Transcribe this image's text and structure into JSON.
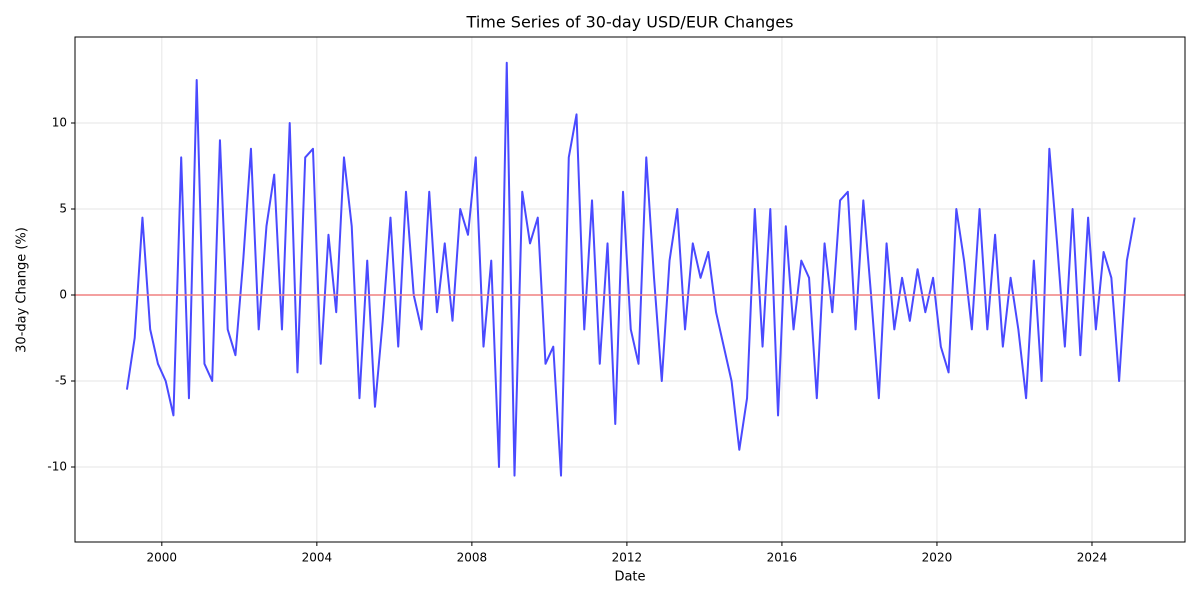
{
  "chart_data": {
    "type": "line",
    "title": "Time Series of 30-day USD/EUR Changes",
    "x_label": "Date",
    "y_label": "30-day Change (%)",
    "x": [
      1999.1,
      1999.3,
      1999.5,
      1999.7,
      1999.9,
      2000.1,
      2000.3,
      2000.5,
      2000.7,
      2000.9,
      2001.1,
      2001.3,
      2001.5,
      2001.7,
      2001.9,
      2002.1,
      2002.3,
      2002.5,
      2002.7,
      2002.9,
      2003.1,
      2003.3,
      2003.5,
      2003.7,
      2003.9,
      2004.1,
      2004.3,
      2004.5,
      2004.7,
      2004.9,
      2005.1,
      2005.3,
      2005.5,
      2005.7,
      2005.9,
      2006.1,
      2006.3,
      2006.5,
      2006.7,
      2006.9,
      2007.1,
      2007.3,
      2007.5,
      2007.7,
      2007.9,
      2008.1,
      2008.3,
      2008.5,
      2008.7,
      2008.9,
      2009.1,
      2009.3,
      2009.5,
      2009.7,
      2009.9,
      2010.1,
      2010.3,
      2010.5,
      2010.7,
      2010.9,
      2011.1,
      2011.3,
      2011.5,
      2011.7,
      2011.9,
      2012.1,
      2012.3,
      2012.5,
      2012.7,
      2012.9,
      2013.1,
      2013.3,
      2013.5,
      2013.7,
      2013.9,
      2014.1,
      2014.3,
      2014.5,
      2014.7,
      2014.9,
      2015.1,
      2015.3,
      2015.5,
      2015.7,
      2015.9,
      2016.1,
      2016.3,
      2016.5,
      2016.7,
      2016.9,
      2017.1,
      2017.3,
      2017.5,
      2017.7,
      2017.9,
      2018.1,
      2018.3,
      2018.5,
      2018.7,
      2018.9,
      2019.1,
      2019.3,
      2019.5,
      2019.7,
      2019.9,
      2020.1,
      2020.3,
      2020.5,
      2020.7,
      2020.9,
      2021.1,
      2021.3,
      2021.5,
      2021.7,
      2021.9,
      2022.1,
      2022.3,
      2022.5,
      2022.7,
      2022.9,
      2023.1,
      2023.3,
      2023.5,
      2023.7,
      2023.9,
      2024.1,
      2024.3,
      2024.5,
      2024.7,
      2024.9,
      2025.1
    ],
    "series": [
      {
        "name": "30-day Change",
        "color": "#4a4aff",
        "values": [
          -5.5,
          -2.5,
          4.5,
          -2,
          -4,
          -5,
          -7,
          8,
          -6,
          12.5,
          -4,
          -5,
          9,
          -2,
          -3.5,
          2,
          8.5,
          -2,
          4,
          7,
          -2,
          10,
          -4.5,
          8,
          8.5,
          -4,
          3.5,
          -1,
          8,
          4,
          -6,
          2,
          -6.5,
          -1.5,
          4.5,
          -3,
          6,
          0,
          -2,
          6,
          -1,
          3,
          -1.5,
          5,
          3.5,
          8,
          -3,
          2,
          -10,
          13.5,
          -10.5,
          6,
          3,
          4.5,
          -4,
          -3,
          -10.5,
          8,
          10.5,
          -2,
          5.5,
          -4,
          3,
          -7.5,
          6,
          -2,
          -4,
          8,
          1,
          -5,
          2,
          5,
          -2,
          3,
          1,
          2.5,
          -1,
          -3,
          -5,
          -9,
          -6,
          5,
          -3,
          5,
          -7,
          4,
          -2,
          2,
          1,
          -6,
          3,
          -1,
          5.5,
          6,
          -2,
          5.5,
          0,
          -6,
          3,
          -2,
          1,
          -1.5,
          1.5,
          -1,
          1,
          -3,
          -4.5,
          5,
          2,
          -2,
          5,
          -2,
          3.5,
          -3,
          1,
          -2,
          -6,
          2,
          -5,
          8.5,
          3,
          -3,
          5,
          -3.5,
          4.5,
          -2,
          2.5,
          1,
          -5,
          2,
          4.5
        ]
      }
    ],
    "reference_line": {
      "y": 0,
      "color": "#f08080"
    },
    "xlim": [
      1997.76,
      2026.4
    ],
    "xticks": [
      2000,
      2004,
      2008,
      2012,
      2016,
      2020,
      2024
    ],
    "ylim": [
      -14.36,
      15.0
    ],
    "yticks": [
      -10,
      -5,
      0,
      5,
      10
    ],
    "grid": true
  }
}
